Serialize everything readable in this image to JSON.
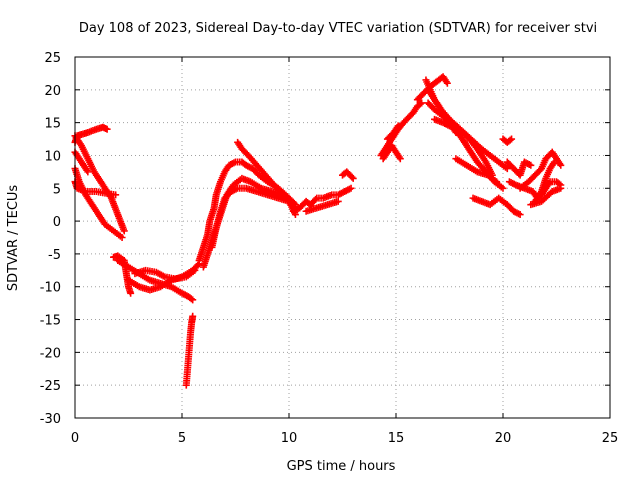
{
  "chart_data": {
    "type": "scatter",
    "title": "Day 108 of 2023, Sidereal Day-to-day VTEC variation (SDTVAR) for receiver stvi",
    "xlabel": "GPS time / hours",
    "ylabel": "SDTVAR / TECUs",
    "xlim": [
      0,
      25
    ],
    "ylim": [
      -30,
      25
    ],
    "xticks": [
      0,
      5,
      10,
      15,
      20,
      25
    ],
    "yticks": [
      -30,
      -25,
      -20,
      -15,
      -10,
      -5,
      0,
      5,
      10,
      15,
      20,
      25
    ],
    "grid": true,
    "marker": "+",
    "color": "#ff0000",
    "tracks": [
      [
        [
          0.0,
          13.0
        ],
        [
          0.3,
          11.5
        ],
        [
          0.6,
          9.5
        ],
        [
          0.9,
          7.5
        ],
        [
          1.3,
          5.5
        ],
        [
          1.7,
          3.5
        ],
        [
          2.0,
          1.0
        ],
        [
          2.3,
          -1.5
        ]
      ],
      [
        [
          0.0,
          12.0
        ],
        [
          0.1,
          13.0
        ],
        [
          0.3,
          13.2
        ],
        [
          0.6,
          13.5
        ],
        [
          1.0,
          14.0
        ],
        [
          1.3,
          14.3
        ],
        [
          1.5,
          14.0
        ]
      ],
      [
        [
          0.0,
          8.0
        ],
        [
          0.2,
          6.0
        ],
        [
          0.5,
          4.0
        ],
        [
          0.8,
          2.5
        ],
        [
          1.1,
          1.0
        ],
        [
          1.4,
          -0.5
        ],
        [
          1.8,
          -1.5
        ],
        [
          2.2,
          -2.5
        ]
      ],
      [
        [
          0.0,
          6.0
        ],
        [
          0.1,
          5.0
        ],
        [
          0.5,
          4.5
        ],
        [
          1.0,
          4.5
        ],
        [
          1.5,
          4.2
        ],
        [
          1.9,
          4.0
        ]
      ],
      [
        [
          0.0,
          10.5
        ],
        [
          0.3,
          9.0
        ],
        [
          0.6,
          7.5
        ]
      ],
      [
        [
          1.8,
          -5.5
        ],
        [
          2.0,
          -5.3
        ],
        [
          2.3,
          -6.0
        ],
        [
          2.4,
          -8.0
        ],
        [
          2.5,
          -10.0
        ],
        [
          2.6,
          -11.0
        ]
      ],
      [
        [
          2.0,
          -6.0
        ],
        [
          2.5,
          -7.0
        ],
        [
          3.0,
          -8.0
        ],
        [
          3.5,
          -9.0
        ],
        [
          4.0,
          -9.5
        ],
        [
          4.5,
          -10.0
        ],
        [
          5.0,
          -11.0
        ],
        [
          5.3,
          -11.5
        ],
        [
          5.5,
          -12.0
        ]
      ],
      [
        [
          2.5,
          -9.0
        ],
        [
          3.0,
          -10.0
        ],
        [
          3.5,
          -10.5
        ],
        [
          4.0,
          -10.0
        ],
        [
          4.5,
          -9.0
        ],
        [
          5.0,
          -8.5
        ],
        [
          5.5,
          -7.5
        ],
        [
          5.8,
          -6.5
        ]
      ],
      [
        [
          2.8,
          -8.0
        ],
        [
          3.3,
          -7.5
        ],
        [
          3.8,
          -7.8
        ],
        [
          4.2,
          -8.5
        ],
        [
          4.7,
          -8.8
        ],
        [
          5.2,
          -8.5
        ],
        [
          5.6,
          -7.5
        ]
      ],
      [
        [
          5.2,
          -25.0
        ],
        [
          5.25,
          -23.0
        ],
        [
          5.3,
          -21.0
        ],
        [
          5.35,
          -19.0
        ],
        [
          5.4,
          -17.0
        ],
        [
          5.45,
          -15.5
        ],
        [
          5.5,
          -14.5
        ]
      ],
      [
        [
          5.8,
          -6.0
        ],
        [
          6.0,
          -4.0
        ],
        [
          6.2,
          -2.0
        ],
        [
          6.3,
          0.0
        ],
        [
          6.5,
          2.0
        ],
        [
          6.6,
          4.0
        ],
        [
          6.8,
          6.0
        ],
        [
          7.0,
          7.5
        ],
        [
          7.2,
          8.5
        ],
        [
          7.5,
          9.0
        ],
        [
          7.8,
          9.0
        ],
        [
          8.0,
          8.5
        ],
        [
          8.3,
          8.0
        ],
        [
          8.6,
          7.0
        ],
        [
          9.0,
          6.0
        ],
        [
          9.5,
          5.0
        ],
        [
          10.0,
          3.5
        ],
        [
          10.3,
          2.5
        ]
      ],
      [
        [
          6.0,
          -7.0
        ],
        [
          6.2,
          -5.0
        ],
        [
          6.4,
          -3.0
        ],
        [
          6.6,
          -1.0
        ],
        [
          6.8,
          1.5
        ],
        [
          7.0,
          3.5
        ],
        [
          7.3,
          4.5
        ],
        [
          7.6,
          5.0
        ],
        [
          8.0,
          5.0
        ],
        [
          8.5,
          4.5
        ],
        [
          9.0,
          4.0
        ],
        [
          9.5,
          3.5
        ],
        [
          10.0,
          3.0
        ],
        [
          10.3,
          2.0
        ]
      ],
      [
        [
          6.4,
          -4.0
        ],
        [
          6.6,
          -1.0
        ],
        [
          6.9,
          2.0
        ],
        [
          7.1,
          4.0
        ],
        [
          7.4,
          5.5
        ],
        [
          7.8,
          6.5
        ],
        [
          8.2,
          6.0
        ],
        [
          8.7,
          5.0
        ],
        [
          9.2,
          4.5
        ],
        [
          9.8,
          3.5
        ],
        [
          10.2,
          2.8
        ]
      ],
      [
        [
          7.6,
          12.0
        ],
        [
          7.8,
          11.0
        ],
        [
          8.1,
          10.0
        ],
        [
          8.5,
          8.5
        ],
        [
          8.9,
          7.0
        ],
        [
          9.3,
          5.5
        ],
        [
          9.7,
          4.0
        ],
        [
          10.0,
          3.0
        ],
        [
          10.3,
          1.0
        ]
      ],
      [
        [
          10.2,
          1.5
        ],
        [
          10.5,
          2.0
        ],
        [
          10.8,
          3.0
        ],
        [
          11.0,
          2.5
        ],
        [
          11.3,
          3.5
        ],
        [
          11.6,
          3.5
        ],
        [
          12.0,
          4.0
        ],
        [
          12.3,
          4.0
        ],
        [
          12.6,
          4.5
        ],
        [
          12.9,
          5.0
        ]
      ],
      [
        [
          10.8,
          1.5
        ],
        [
          11.3,
          2.0
        ],
        [
          11.8,
          2.5
        ],
        [
          12.3,
          3.0
        ]
      ],
      [
        [
          12.5,
          7.0
        ],
        [
          12.7,
          7.5
        ],
        [
          13.0,
          6.5
        ]
      ],
      [
        [
          14.3,
          10.0
        ],
        [
          14.5,
          11.0
        ],
        [
          14.7,
          12.0
        ],
        [
          14.9,
          13.0
        ],
        [
          15.1,
          14.0
        ],
        [
          15.3,
          14.8
        ],
        [
          15.5,
          15.5
        ],
        [
          15.8,
          16.5
        ],
        [
          16.0,
          17.5
        ],
        [
          16.2,
          18.0
        ]
      ],
      [
        [
          14.4,
          9.5
        ],
        [
          14.6,
          10.5
        ],
        [
          14.8,
          11.5
        ],
        [
          15.0,
          10.5
        ],
        [
          15.2,
          9.5
        ]
      ],
      [
        [
          14.6,
          12.5
        ],
        [
          14.9,
          13.5
        ],
        [
          15.1,
          14.5
        ]
      ],
      [
        [
          16.0,
          18.5
        ],
        [
          16.3,
          19.5
        ],
        [
          16.6,
          20.5
        ],
        [
          16.8,
          21.0
        ],
        [
          17.0,
          21.5
        ],
        [
          17.2,
          22.0
        ],
        [
          17.4,
          21.0
        ]
      ],
      [
        [
          16.5,
          20.0
        ],
        [
          16.7,
          19.0
        ],
        [
          17.0,
          17.5
        ],
        [
          17.3,
          16.0
        ],
        [
          17.6,
          14.5
        ],
        [
          18.0,
          13.0
        ],
        [
          18.4,
          11.0
        ],
        [
          18.8,
          9.0
        ],
        [
          19.2,
          7.5
        ],
        [
          19.6,
          6.0
        ],
        [
          20.0,
          5.0
        ]
      ],
      [
        [
          16.4,
          21.5
        ],
        [
          16.6,
          20.0
        ],
        [
          16.8,
          18.5
        ],
        [
          17.1,
          17.0
        ],
        [
          17.5,
          15.5
        ],
        [
          18.0,
          14.0
        ],
        [
          18.5,
          12.5
        ],
        [
          19.0,
          11.0
        ],
        [
          19.4,
          10.0
        ],
        [
          19.8,
          9.0
        ],
        [
          20.2,
          8.0
        ]
      ],
      [
        [
          16.5,
          18.0
        ],
        [
          16.8,
          17.0
        ],
        [
          17.2,
          16.0
        ],
        [
          17.5,
          15.0
        ],
        [
          17.8,
          13.5
        ]
      ],
      [
        [
          16.8,
          15.5
        ],
        [
          17.2,
          15.0
        ],
        [
          17.5,
          14.5
        ],
        [
          17.9,
          14.0
        ],
        [
          18.3,
          13.0
        ],
        [
          18.8,
          11.0
        ],
        [
          19.2,
          9.0
        ],
        [
          19.5,
          7.0
        ]
      ],
      [
        [
          17.8,
          9.5
        ],
        [
          18.3,
          8.5
        ],
        [
          18.8,
          7.5
        ],
        [
          19.3,
          7.0
        ],
        [
          19.7,
          6.0
        ]
      ],
      [
        [
          18.6,
          3.5
        ],
        [
          19.0,
          3.0
        ],
        [
          19.4,
          2.5
        ],
        [
          19.8,
          3.5
        ],
        [
          20.2,
          2.5
        ],
        [
          20.5,
          1.5
        ],
        [
          20.8,
          1.0
        ]
      ],
      [
        [
          20.0,
          12.5
        ],
        [
          20.2,
          12.0
        ],
        [
          20.4,
          12.5
        ]
      ],
      [
        [
          20.2,
          9.0
        ],
        [
          20.5,
          8.0
        ],
        [
          20.8,
          7.0
        ],
        [
          21.0,
          9.0
        ],
        [
          21.3,
          8.5
        ]
      ],
      [
        [
          20.3,
          6.0
        ],
        [
          20.6,
          5.5
        ],
        [
          21.0,
          5.0
        ],
        [
          21.4,
          4.5
        ],
        [
          21.6,
          3.5
        ],
        [
          21.8,
          4.0
        ],
        [
          22.0,
          5.0
        ],
        [
          22.2,
          6.0
        ],
        [
          22.5,
          6.0
        ],
        [
          22.7,
          5.5
        ]
      ],
      [
        [
          20.8,
          5.0
        ],
        [
          21.2,
          6.0
        ],
        [
          21.5,
          7.0
        ],
        [
          21.8,
          8.0
        ],
        [
          22.0,
          9.5
        ],
        [
          22.3,
          10.5
        ],
        [
          22.5,
          9.5
        ],
        [
          22.7,
          8.5
        ]
      ],
      [
        [
          21.5,
          3.0
        ],
        [
          21.8,
          4.5
        ],
        [
          22.0,
          6.5
        ],
        [
          22.2,
          8.0
        ],
        [
          22.4,
          9.0
        ]
      ],
      [
        [
          21.3,
          2.5
        ],
        [
          21.8,
          3.0
        ],
        [
          22.3,
          4.5
        ],
        [
          22.7,
          5.0
        ]
      ]
    ]
  }
}
